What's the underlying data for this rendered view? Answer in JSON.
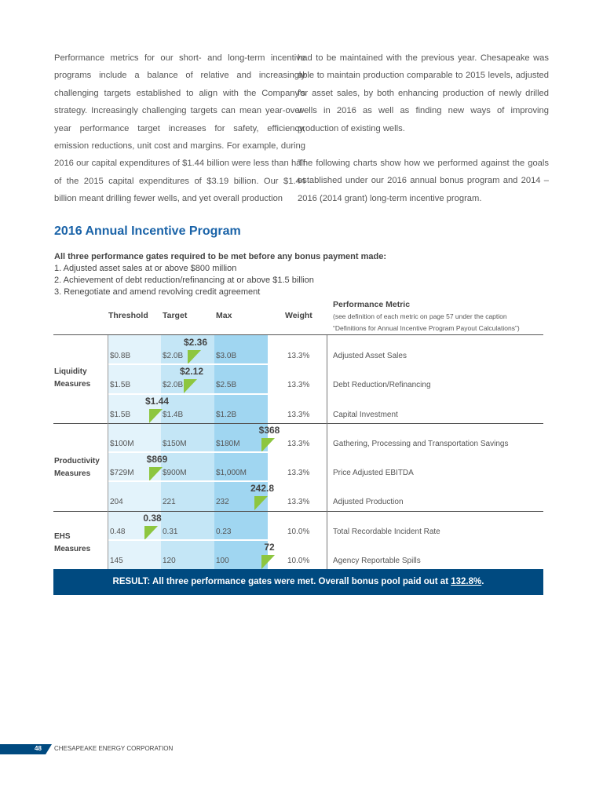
{
  "body_left": "Performance metrics for our short- and long-term incentive programs include a balance of relative and increasingly challenging targets established to align with the Company’s strategy. Increasingly challenging targets can mean year-over-year performance target increases for safety, efficiency, emission reductions, unit cost and margins. For example, during 2016 our capital expenditures of $1.44 billion were less than half of the 2015 capital expenditures of $3.19 billion. Our $1.44 billion meant drilling fewer wells, and yet overall production",
  "body_right_1": "had to be maintained with the previous year. Chesapeake was able to maintain production comparable to 2015 levels, adjusted for asset sales, by both enhancing production of newly drilled wells in 2016 as well as finding new ways of improving production of existing wells.",
  "body_right_2": "The following charts show how we performed against the goals established under our 2016 annual bonus program and 2014 – 2016 (2014 grant) long-term incentive program.",
  "section_title": "2016 Annual Incentive Program",
  "gates_heading": "All three performance gates required to be met before any bonus payment made:",
  "gates": [
    "1.  Adjusted asset sales at or above $800 million",
    "2.  Achievement of debt reduction/refinancing at or above $1.5 billion",
    "3.  Renegotiate and amend revolving credit agreement"
  ],
  "headers": {
    "threshold": "Threshold",
    "target": "Target",
    "max": "Max",
    "weight": "Weight",
    "metric": "Performance Metric",
    "metric_note1": "(see definition of each metric on page 57 under the caption",
    "metric_note2": "“Definitions for Annual Incentive Program Payout Calculations”)"
  },
  "groups": [
    {
      "l1": "Liquidity",
      "l2": "Measures"
    },
    {
      "l1": "Productivity",
      "l2": "Measures"
    },
    {
      "l1": "EHS",
      "l2": "Measures"
    }
  ],
  "rows": [
    {
      "threshold": "$0.8B",
      "target": "$2.0B",
      "max": "$3.0B",
      "weight": "13.3%",
      "metric": "Adjusted Asset Sales",
      "actual": "$2.36"
    },
    {
      "threshold": "$1.5B",
      "target": "$2.0B",
      "max": "$2.5B",
      "weight": "13.3%",
      "metric": "Debt Reduction/Refinancing",
      "actual": "$2.12"
    },
    {
      "threshold": "$1.5B",
      "target": "$1.4B",
      "max": "$1.2B",
      "weight": "13.3%",
      "metric": "Capital Investment",
      "actual": "$1.44"
    },
    {
      "threshold": "$100M",
      "target": "$150M",
      "max": "$180M",
      "weight": "13.3%",
      "metric": "Gathering, Processing and Transportation Savings",
      "actual": "$368"
    },
    {
      "threshold": "$729M",
      "target": "$900M",
      "max": "$1,000M",
      "weight": "13.3%",
      "metric": "Price Adjusted EBITDA",
      "actual": "$869"
    },
    {
      "threshold": "204",
      "target": "221",
      "max": "232",
      "weight": "13.3%",
      "metric": "Adjusted Production",
      "actual": "242.8"
    },
    {
      "threshold": "0.48",
      "target": "0.31",
      "max": "0.23",
      "weight": "10.0%",
      "metric": "Total Recordable Incident Rate",
      "actual": "0.38"
    },
    {
      "threshold": "145",
      "target": "120",
      "max": "100",
      "weight": "10.0%",
      "metric": "Agency Reportable Spills",
      "actual": "72"
    }
  ],
  "colors": {
    "threshold_bg": "#e3f3fb",
    "target_bg": "#c4e6f6",
    "max_bg": "#a0d6f1",
    "marker": "#8dc63f",
    "result_bg": "#004a80",
    "title": "#1a63a8"
  },
  "result_text": "RESULT: All three performance gates were met. Overall bonus pool paid out at ",
  "result_value": "132.8%",
  "result_end": ".",
  "footer": {
    "page": "48",
    "company": "CHESAPEAKE ENERGY CORPORATION"
  }
}
